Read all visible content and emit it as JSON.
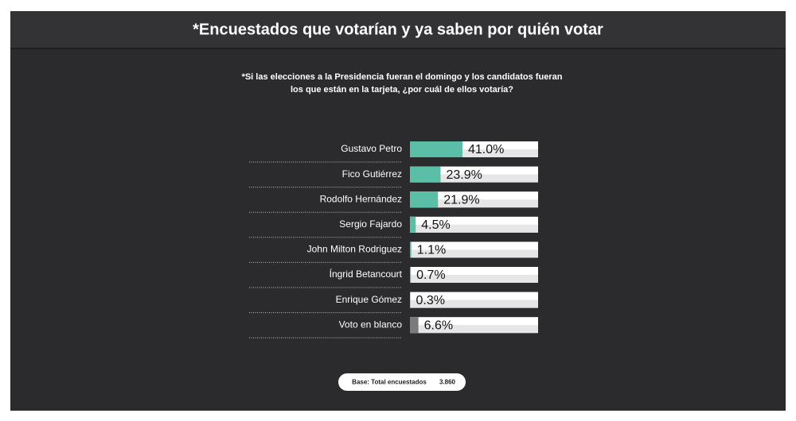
{
  "chart_data": {
    "type": "bar",
    "orientation": "horizontal",
    "title": "*Encuestados que votarían y ya saben por quién votar",
    "subtitle": [
      "*Si las elecciones a la Presidencia fueran el domingo y los candidatos  fueran",
      "los que están en la tarjeta, ¿por cuál de ellos votaría?"
    ],
    "categories": [
      "Gustavo Petro",
      "Fico Gutiérrez",
      "Rodolfo Hernández",
      "Sergio Fajardo",
      "John Milton Rodriguez",
      "Íngrid Betancourt",
      "Enrique Gómez",
      "Voto en blanco"
    ],
    "values": [
      41.0,
      23.9,
      21.9,
      4.5,
      1.1,
      0.7,
      0.3,
      6.6
    ],
    "value_labels": [
      "41.0%",
      "23.9%",
      "21.9%",
      "4.5%",
      "1.1%",
      "0.7%",
      "0.3%",
      "6.6%"
    ],
    "colors": [
      "#5bbfa8",
      "#5bbfa8",
      "#5bbfa8",
      "#5bbfa8",
      "#5bbfa8",
      "#5bbfa8",
      "#5bbfa8",
      "#7a7a7a"
    ],
    "xlim": [
      0,
      100
    ],
    "base": {
      "label": "Base: Total encuestados",
      "value": "3.860"
    }
  }
}
